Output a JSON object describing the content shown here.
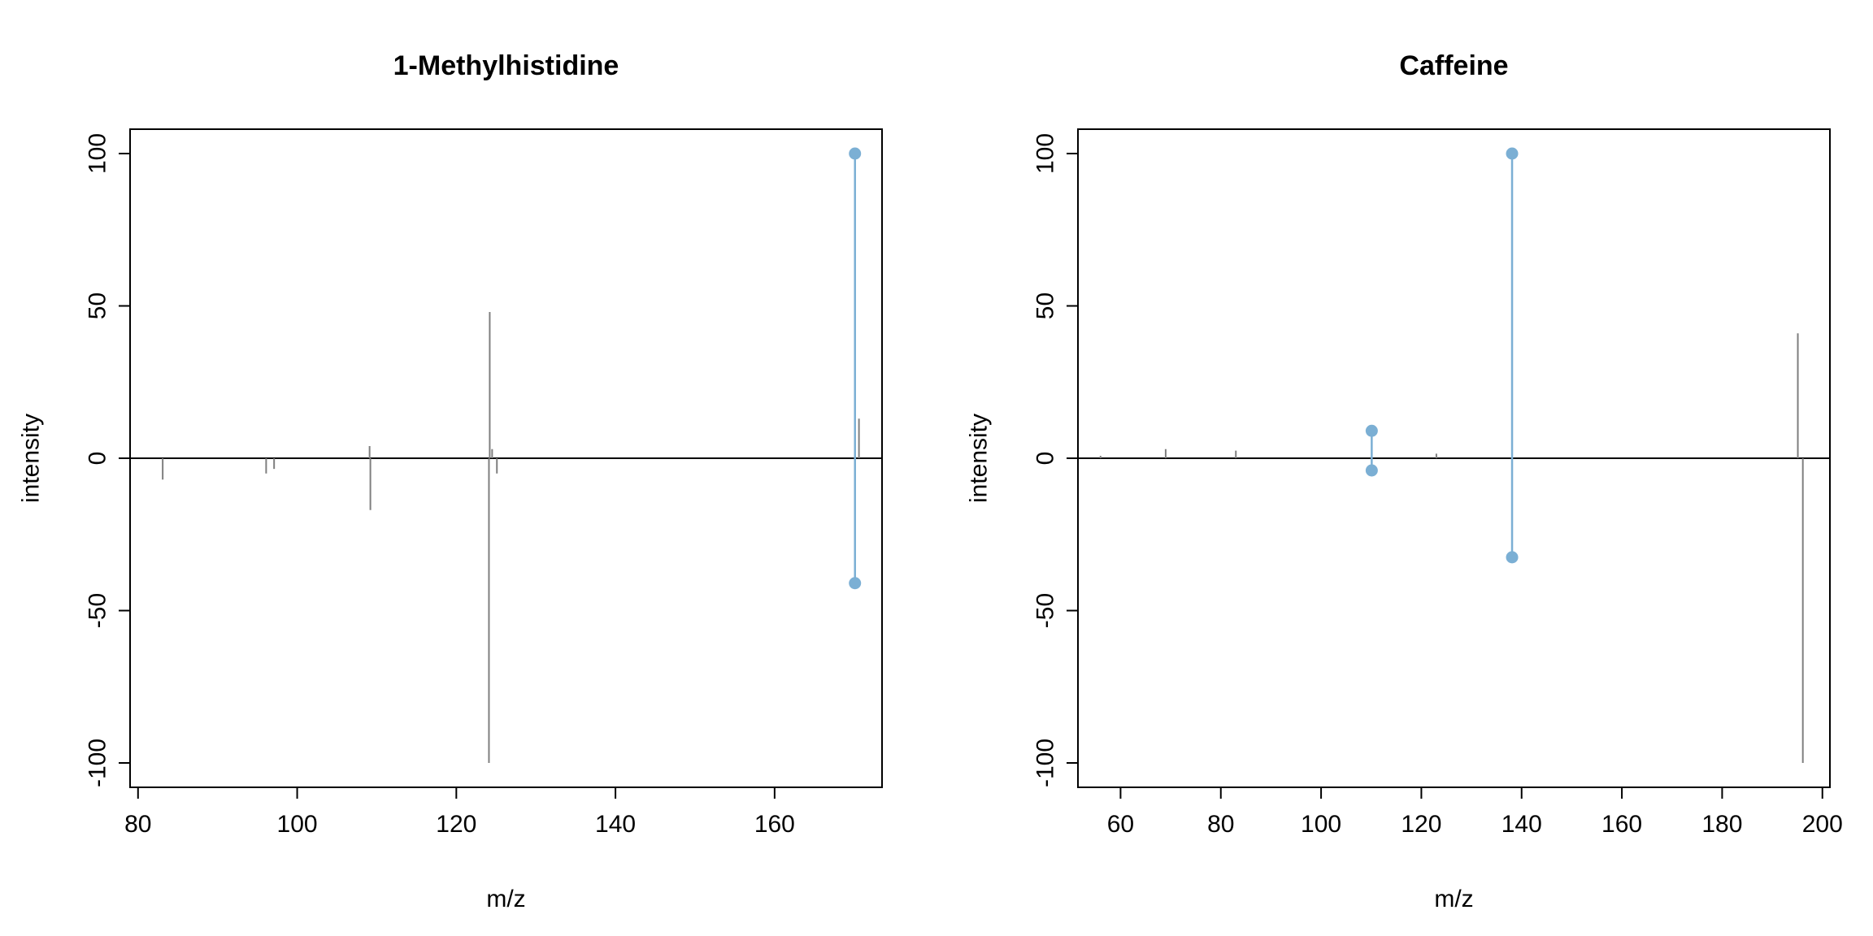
{
  "colors": {
    "matched": "#7bafd4",
    "unmatched": "#7f7f7f",
    "axis": "#000000",
    "background": "#ffffff"
  },
  "chart_data": [
    {
      "type": "mirror-spectrum",
      "title": "1-Methylhistidine",
      "xlabel": "m/z",
      "ylabel": "intensity",
      "xlim": [
        79,
        173.5
      ],
      "ylim": [
        -108,
        108
      ],
      "xticks": [
        80,
        100,
        120,
        140,
        160
      ],
      "yticks": [
        -100,
        -50,
        0,
        50,
        100
      ],
      "series": [
        {
          "peaks": [
            {
              "mz": 109.1,
              "intensity": 4,
              "matched": false
            },
            {
              "mz": 124.2,
              "intensity": 48,
              "matched": false
            },
            {
              "mz": 124.5,
              "intensity": 3,
              "matched": false
            },
            {
              "mz": 170.1,
              "intensity": 100,
              "matched": true
            },
            {
              "mz": 170.6,
              "intensity": 13,
              "matched": false
            }
          ]
        },
        {
          "peaks": [
            {
              "mz": 83.1,
              "intensity": -7,
              "matched": false
            },
            {
              "mz": 96.1,
              "intensity": -5,
              "matched": false
            },
            {
              "mz": 97.1,
              "intensity": -3.5,
              "matched": false
            },
            {
              "mz": 109.2,
              "intensity": -17,
              "matched": false
            },
            {
              "mz": 124.1,
              "intensity": -100,
              "matched": false
            },
            {
              "mz": 125.1,
              "intensity": -5,
              "matched": false
            },
            {
              "mz": 170.1,
              "intensity": -41,
              "matched": true
            }
          ]
        }
      ]
    },
    {
      "type": "mirror-spectrum",
      "title": "Caffeine",
      "xlabel": "m/z",
      "ylabel": "intensity",
      "xlim": [
        51.5,
        201.5
      ],
      "ylim": [
        -108,
        108
      ],
      "xticks": [
        60,
        80,
        100,
        120,
        140,
        160,
        180,
        200
      ],
      "yticks": [
        -100,
        -50,
        0,
        50,
        100
      ],
      "series": [
        {
          "peaks": [
            {
              "mz": 56.0,
              "intensity": 0.8,
              "matched": false
            },
            {
              "mz": 69.0,
              "intensity": 3,
              "matched": false
            },
            {
              "mz": 83.0,
              "intensity": 2.5,
              "matched": false
            },
            {
              "mz": 110.1,
              "intensity": 9,
              "matched": true
            },
            {
              "mz": 123.0,
              "intensity": 1.5,
              "matched": false
            },
            {
              "mz": 138.1,
              "intensity": 100,
              "matched": true
            },
            {
              "mz": 195.1,
              "intensity": 41,
              "matched": false
            }
          ]
        },
        {
          "peaks": [
            {
              "mz": 110.1,
              "intensity": -4,
              "matched": true
            },
            {
              "mz": 138.1,
              "intensity": -32.5,
              "matched": true
            },
            {
              "mz": 196.1,
              "intensity": -100,
              "matched": false
            }
          ]
        }
      ]
    }
  ]
}
